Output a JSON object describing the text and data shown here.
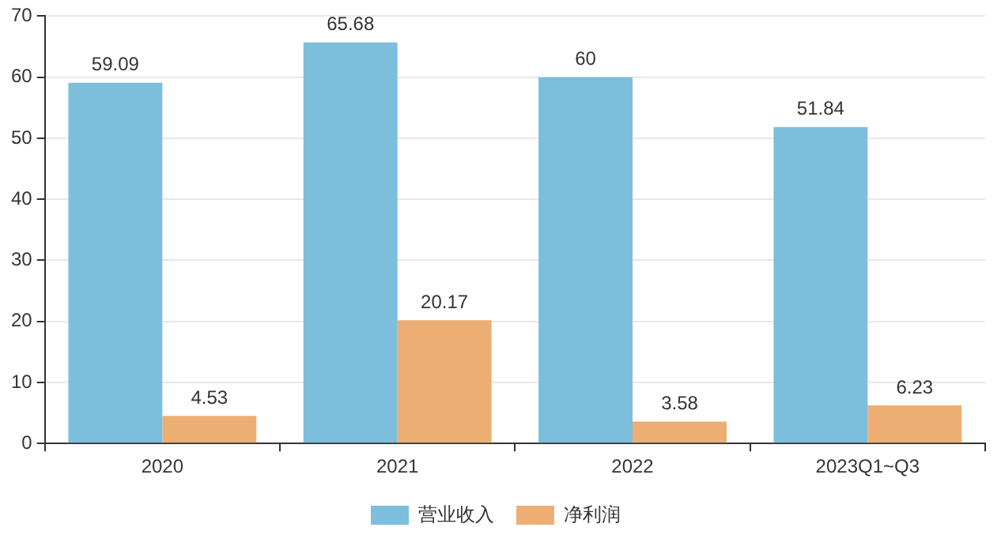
{
  "chart_data": {
    "type": "bar",
    "categories": [
      "2020",
      "2021",
      "2022",
      "2023Q1~Q3"
    ],
    "series": [
      {
        "name": "营业收入",
        "color": "#7dbedc",
        "values": [
          59.09,
          65.68,
          60,
          51.84
        ]
      },
      {
        "name": "净利润",
        "color": "#edae74",
        "values": [
          4.53,
          20.17,
          3.58,
          6.23
        ]
      }
    ],
    "ylim": [
      0,
      70
    ],
    "yticks": [
      0,
      10,
      20,
      30,
      40,
      50,
      60,
      70
    ],
    "grid": "y",
    "legend": "bottom",
    "data_labels": true
  }
}
